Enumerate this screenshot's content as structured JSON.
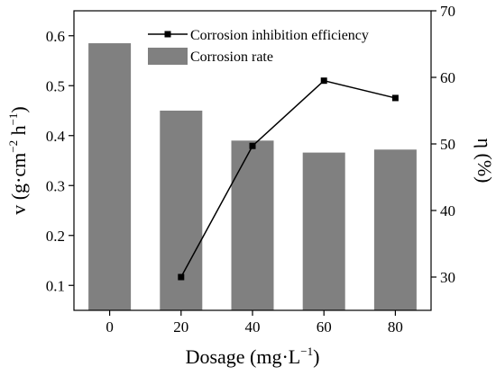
{
  "chart_data": {
    "type": "bar+line",
    "x": {
      "label": "Dosage (mg·L",
      "label_sup": "−1",
      "label_end": ")",
      "categories": [
        0,
        20,
        40,
        60,
        80
      ],
      "tick_labels": [
        "0",
        "20",
        "40",
        "60",
        "80"
      ]
    },
    "y_left": {
      "label": "v (g·cm",
      "label_sup1": "−2",
      "label_mid": " h",
      "label_sup2": "−1",
      "label_end": ")",
      "range": [
        0.05,
        0.65
      ],
      "ticks": [
        0.1,
        0.2,
        0.3,
        0.4,
        0.5,
        0.6
      ],
      "tick_labels": [
        "0.1",
        "0.2",
        "0.3",
        "0.4",
        "0.5",
        "0.6"
      ]
    },
    "y_right": {
      "label": "η (%)",
      "range": [
        25,
        70
      ],
      "ticks": [
        30,
        40,
        50,
        60,
        70
      ],
      "tick_labels": [
        "30",
        "40",
        "50",
        "60",
        "70"
      ]
    },
    "series": [
      {
        "name": "Corrosion rate",
        "kind": "bar",
        "axis": "left",
        "color": "#808080",
        "x": [
          0,
          20,
          40,
          60,
          80
        ],
        "values": [
          0.585,
          0.45,
          0.39,
          0.366,
          0.372
        ]
      },
      {
        "name": "Corrosion inhibition efficiency",
        "kind": "line",
        "axis": "right",
        "color": "#000000",
        "marker": "square",
        "x": [
          20,
          40,
          60,
          80
        ],
        "values": [
          30.0,
          49.7,
          59.5,
          56.9
        ]
      }
    ],
    "legend": {
      "placement": "top-center",
      "order": [
        1,
        0
      ]
    },
    "grid": false
  }
}
